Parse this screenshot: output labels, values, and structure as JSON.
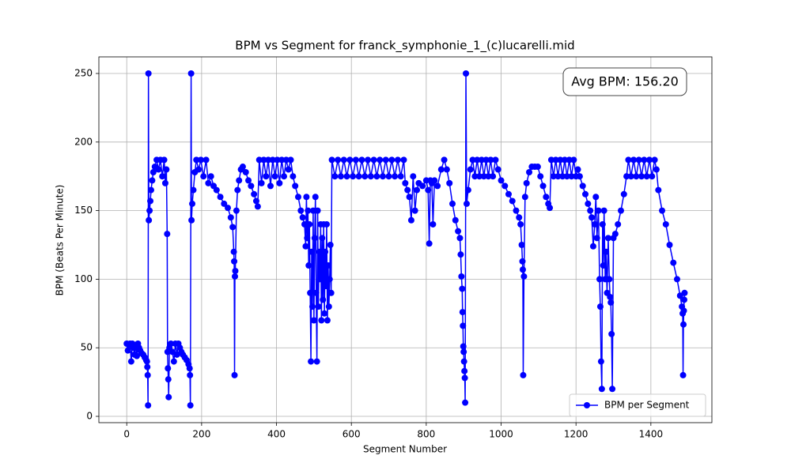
{
  "chart_data": {
    "type": "line",
    "title": "BPM vs Segment for franck_symphonie_1_(c)lucarelli.mid",
    "xlabel": "Segment Number",
    "ylabel": "BPM (Beats Per Minute)",
    "annotation": "Avg BPM: 156.20",
    "legend": "lower right",
    "grid": true,
    "xlim": [
      -74.4,
      1563
    ],
    "ylim": [
      -4.6,
      262.1
    ],
    "xticks": [
      0,
      200,
      400,
      600,
      800,
      1000,
      1200,
      1400
    ],
    "yticks": [
      0,
      50,
      100,
      150,
      200,
      250
    ],
    "series": [
      {
        "name": "BPM per Segment",
        "color": "#0000ff",
        "x": [
          0,
          3,
          6,
          9,
          12,
          15,
          18,
          21,
          24,
          27,
          30,
          33,
          36,
          40,
          44,
          48,
          52,
          54,
          55,
          56,
          57,
          58,
          59,
          61,
          63,
          65,
          68,
          71,
          75,
          80,
          85,
          90,
          95,
          100,
          103,
          106,
          108,
          109,
          110,
          111,
          112,
          114,
          118,
          122,
          126,
          130,
          134,
          138,
          142,
          146,
          150,
          155,
          160,
          165,
          168,
          169,
          170,
          172,
          173,
          175,
          178,
          182,
          186,
          192,
          198,
          205,
          212,
          218,
          225,
          232,
          240,
          250,
          260,
          270,
          278,
          283,
          286,
          287,
          288,
          289,
          290,
          293,
          296,
          300,
          305,
          310,
          318,
          325,
          332,
          340,
          346,
          350,
          354,
          360,
          366,
          372,
          378,
          384,
          390,
          396,
          402,
          408,
          414,
          420,
          426,
          432,
          438,
          444,
          450,
          458,
          465,
          470,
          475,
          478,
          480,
          482,
          484,
          486,
          488,
          490,
          492,
          494,
          496,
          498,
          500,
          502,
          504,
          506,
          508,
          510,
          512,
          514,
          516,
          518,
          520,
          522,
          524,
          526,
          528,
          530,
          532,
          534,
          536,
          538,
          540,
          542,
          544,
          546,
          548,
          556,
          564,
          572,
          580,
          588,
          596,
          604,
          612,
          620,
          628,
          636,
          644,
          652,
          660,
          668,
          676,
          684,
          692,
          700,
          708,
          716,
          724,
          732,
          740,
          744,
          750,
          755,
          760,
          765,
          770,
          775,
          780,
          790,
          800,
          805,
          808,
          811,
          815,
          818,
          822,
          830,
          840,
          848,
          855,
          862,
          870,
          878,
          885,
          890,
          892,
          894,
          896,
          897,
          898,
          899,
          900,
          901,
          902,
          903,
          904,
          906,
          908,
          912,
          918,
          924,
          930,
          936,
          942,
          948,
          954,
          960,
          966,
          972,
          978,
          985,
          992,
          1000,
          1010,
          1020,
          1030,
          1040,
          1048,
          1052,
          1055,
          1057,
          1058,
          1059,
          1061,
          1064,
          1068,
          1075,
          1082,
          1090,
          1098,
          1105,
          1112,
          1120,
          1126,
          1130,
          1134,
          1140,
          1146,
          1152,
          1158,
          1164,
          1170,
          1176,
          1182,
          1188,
          1194,
          1200,
          1205,
          1210,
          1218,
          1225,
          1232,
          1238,
          1242,
          1246,
          1250,
          1253,
          1256,
          1260,
          1263,
          1265,
          1267,
          1269,
          1271,
          1273,
          1275,
          1278,
          1280,
          1283,
          1286,
          1289,
          1291,
          1293,
          1295,
          1297,
          1300,
          1305,
          1312,
          1320,
          1328,
          1335,
          1340,
          1347,
          1354,
          1361,
          1368,
          1375,
          1382,
          1389,
          1396,
          1403,
          1410,
          1415,
          1420,
          1430,
          1440,
          1450,
          1460,
          1470,
          1478,
          1483,
          1485,
          1486,
          1487,
          1488,
          1489,
          1490
        ],
        "values": [
          53,
          48,
          52,
          53,
          40,
          53,
          50,
          45,
          52,
          44,
          53,
          50,
          48,
          46,
          45,
          43,
          41,
          40,
          36,
          30,
          8,
          250,
          143,
          150,
          157,
          165,
          172,
          178,
          182,
          187,
          180,
          187,
          175,
          187,
          170,
          180,
          133,
          47,
          35,
          27,
          14,
          50,
          53,
          47,
          40,
          53,
          45,
          53,
          50,
          47,
          45,
          43,
          41,
          38,
          35,
          30,
          8,
          250,
          143,
          155,
          165,
          178,
          187,
          180,
          187,
          175,
          187,
          170,
          175,
          168,
          165,
          160,
          155,
          152,
          145,
          138,
          120,
          113,
          30,
          102,
          106,
          150,
          165,
          172,
          180,
          182,
          178,
          172,
          168,
          162,
          157,
          153,
          187,
          170,
          187,
          175,
          187,
          168,
          187,
          175,
          187,
          170,
          187,
          175,
          187,
          180,
          187,
          175,
          168,
          160,
          150,
          145,
          140,
          124,
          160,
          130,
          150,
          110,
          140,
          90,
          40,
          120,
          80,
          150,
          70,
          130,
          160,
          90,
          40,
          150,
          80,
          120,
          100,
          140,
          70,
          130,
          85,
          140,
          75,
          120,
          95,
          140,
          70,
          110,
          80,
          100,
          125,
          90,
          187,
          175,
          187,
          175,
          187,
          175,
          187,
          175,
          187,
          175,
          187,
          175,
          187,
          175,
          187,
          175,
          187,
          175,
          187,
          175,
          187,
          175,
          187,
          175,
          187,
          170,
          165,
          160,
          143,
          175,
          150,
          165,
          170,
          168,
          172,
          165,
          126,
          172,
          170,
          140,
          172,
          168,
          180,
          187,
          180,
          170,
          155,
          143,
          135,
          130,
          118,
          102,
          93,
          76,
          66,
          51,
          47,
          40,
          33,
          28,
          10,
          250,
          155,
          165,
          180,
          187,
          175,
          187,
          175,
          187,
          175,
          187,
          175,
          187,
          175,
          187,
          180,
          172,
          168,
          162,
          157,
          150,
          145,
          140,
          125,
          113,
          107,
          30,
          102,
          160,
          170,
          178,
          182,
          182,
          182,
          175,
          168,
          160,
          155,
          152,
          187,
          175,
          187,
          175,
          187,
          175,
          187,
          175,
          187,
          175,
          187,
          175,
          180,
          175,
          168,
          162,
          155,
          150,
          145,
          124,
          140,
          160,
          130,
          150,
          100,
          80,
          40,
          20,
          140,
          110,
          150,
          100,
          120,
          90,
          130,
          100,
          87,
          83,
          60,
          20,
          130,
          133,
          140,
          150,
          162,
          175,
          187,
          175,
          187,
          175,
          187,
          175,
          187,
          175,
          187,
          175,
          187,
          180,
          165,
          150,
          140,
          125,
          112,
          100,
          88,
          80,
          75,
          30,
          67,
          77,
          85,
          90
        ]
      }
    ]
  }
}
